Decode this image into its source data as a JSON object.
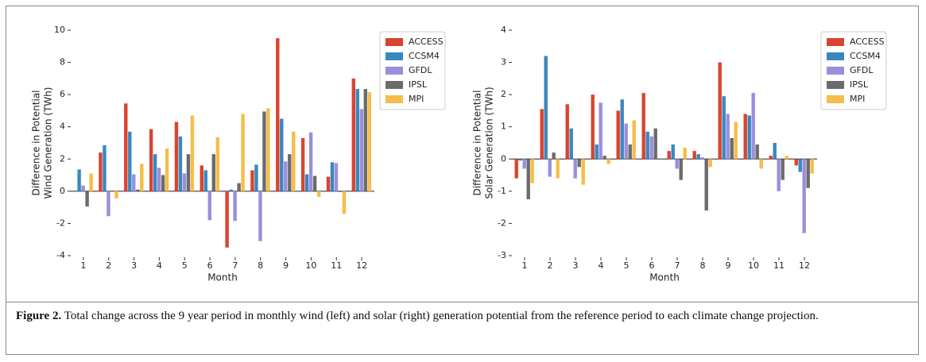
{
  "chart_data": [
    {
      "type": "bar",
      "xlabel": "Month",
      "ylabel": [
        "Difference in Potential",
        "Wind Generation (TWh)"
      ],
      "categories": [
        "1",
        "2",
        "3",
        "4",
        "5",
        "6",
        "7",
        "8",
        "9",
        "10",
        "11",
        "12"
      ],
      "ylim": [
        -4,
        10
      ],
      "yticks": [
        -4,
        -2,
        0,
        2,
        4,
        6,
        8,
        10
      ],
      "series": [
        {
          "name": "ACCESS",
          "color": "#d9442f",
          "values": [
            0.0,
            2.4,
            5.45,
            3.85,
            4.3,
            1.6,
            -3.5,
            1.3,
            9.5,
            3.3,
            0.9,
            7.0
          ]
        },
        {
          "name": "CCSM4",
          "color": "#3a87c0",
          "values": [
            1.35,
            2.85,
            3.7,
            2.3,
            3.4,
            1.3,
            0.1,
            1.65,
            4.5,
            1.05,
            1.8,
            6.35
          ]
        },
        {
          "name": "GFDL",
          "color": "#9a8fdc",
          "values": [
            0.35,
            -1.55,
            1.05,
            1.45,
            1.1,
            -1.8,
            -1.85,
            -3.1,
            1.85,
            3.65,
            1.75,
            5.1
          ]
        },
        {
          "name": "IPSL",
          "color": "#6b6b6b",
          "values": [
            -0.95,
            0.0,
            0.1,
            1.0,
            2.3,
            2.3,
            0.5,
            4.95,
            2.3,
            0.95,
            -0.05,
            6.35
          ]
        },
        {
          "name": "MPI",
          "color": "#f6bd4a",
          "values": [
            1.1,
            -0.45,
            1.7,
            2.65,
            4.7,
            3.35,
            4.8,
            5.15,
            3.7,
            -0.35,
            -1.4,
            6.15
          ]
        }
      ]
    },
    {
      "type": "bar",
      "xlabel": "Month",
      "ylabel": [
        "Difference in Potential",
        "Solar Generation (TWh)"
      ],
      "categories": [
        "1",
        "2",
        "3",
        "4",
        "5",
        "6",
        "7",
        "8",
        "9",
        "10",
        "11",
        "12"
      ],
      "ylim": [
        -3,
        4
      ],
      "yticks": [
        -3,
        -2,
        -1,
        0,
        1,
        2,
        3,
        4
      ],
      "series": [
        {
          "name": "ACCESS",
          "color": "#d9442f",
          "values": [
            -0.6,
            1.55,
            1.7,
            2.0,
            1.5,
            2.05,
            0.25,
            0.25,
            3.0,
            1.4,
            0.1,
            -0.2
          ]
        },
        {
          "name": "CCSM4",
          "color": "#3a87c0",
          "values": [
            -0.05,
            3.2,
            0.95,
            0.45,
            1.85,
            0.85,
            0.45,
            0.15,
            1.95,
            1.35,
            0.5,
            -0.4
          ]
        },
        {
          "name": "GFDL",
          "color": "#9a8fdc",
          "values": [
            -0.3,
            -0.55,
            -0.6,
            1.75,
            1.1,
            0.7,
            -0.3,
            0.05,
            1.4,
            2.05,
            -1.0,
            -2.3
          ]
        },
        {
          "name": "IPSL",
          "color": "#6b6b6b",
          "values": [
            -1.25,
            0.2,
            -0.25,
            0.1,
            0.45,
            0.95,
            -0.65,
            -1.6,
            0.65,
            0.45,
            -0.65,
            -0.9
          ]
        },
        {
          "name": "MPI",
          "color": "#f6bd4a",
          "values": [
            -0.75,
            -0.6,
            -0.8,
            -0.15,
            1.2,
            0.0,
            0.35,
            -0.25,
            1.15,
            -0.3,
            0.1,
            -0.45
          ]
        }
      ]
    }
  ],
  "caption": {
    "label": "Figure 2.",
    "text": "Total change across the 9 year period in monthly wind (left) and solar (right) generation potential from the reference period to each climate change projection."
  }
}
